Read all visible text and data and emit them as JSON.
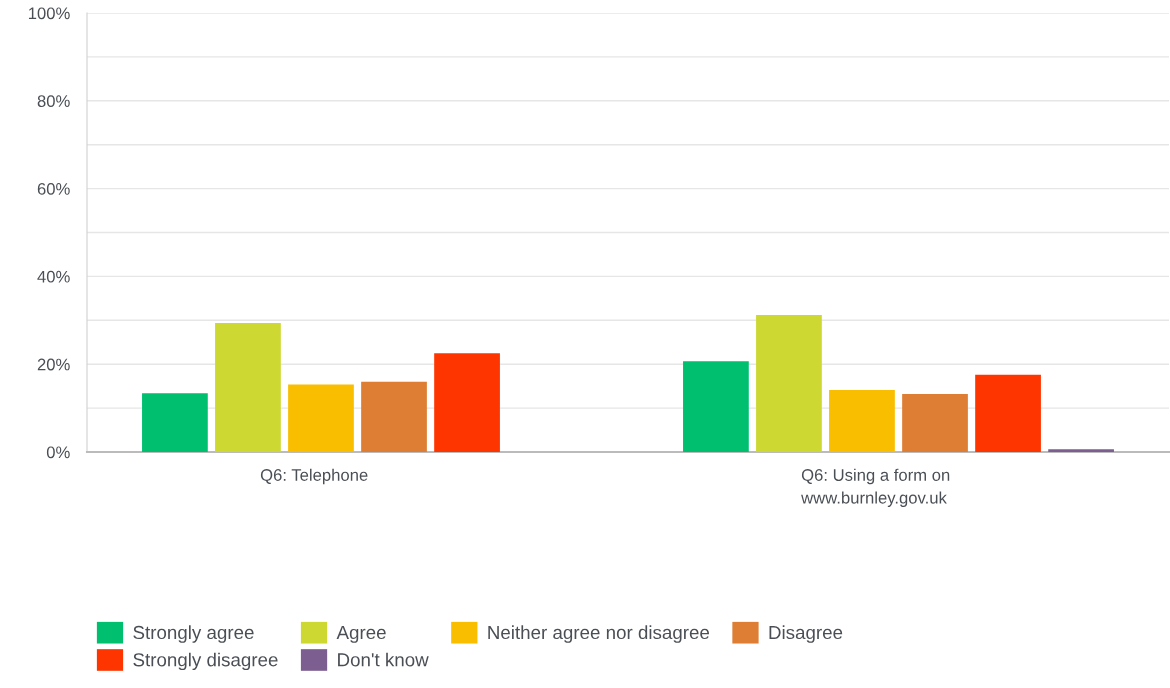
{
  "chart_data": {
    "type": "bar",
    "categories": [
      "Q6: Telephone",
      "Q6: Using a form on\nwww.burnley.gov.uk"
    ],
    "series": [
      {
        "name": "Strongly agree",
        "color": "#00bf6f",
        "values": [
          13.4,
          20.7
        ]
      },
      {
        "name": "Agree",
        "color": "#cdd832",
        "values": [
          29.4,
          31.2
        ]
      },
      {
        "name": "Neither agree nor disagree",
        "color": "#f9be00",
        "values": [
          15.4,
          14.1
        ]
      },
      {
        "name": "Disagree",
        "color": "#de7e35",
        "values": [
          16.0,
          13.2
        ]
      },
      {
        "name": "Strongly disagree",
        "color": "#ff3500",
        "values": [
          22.5,
          17.6
        ]
      },
      {
        "name": "Don't know",
        "color": "#7d5e90",
        "values": [
          null,
          0.6
        ]
      }
    ],
    "ylim": [
      0,
      100
    ],
    "yticks": [
      {
        "value": 0,
        "label": "0%"
      },
      {
        "value": 20,
        "label": "20%"
      },
      {
        "value": 40,
        "label": "40%"
      },
      {
        "value": 60,
        "label": "60%"
      },
      {
        "value": 80,
        "label": "80%"
      },
      {
        "value": 100,
        "label": "100%"
      }
    ],
    "grid": "y",
    "legend": "bottom"
  }
}
